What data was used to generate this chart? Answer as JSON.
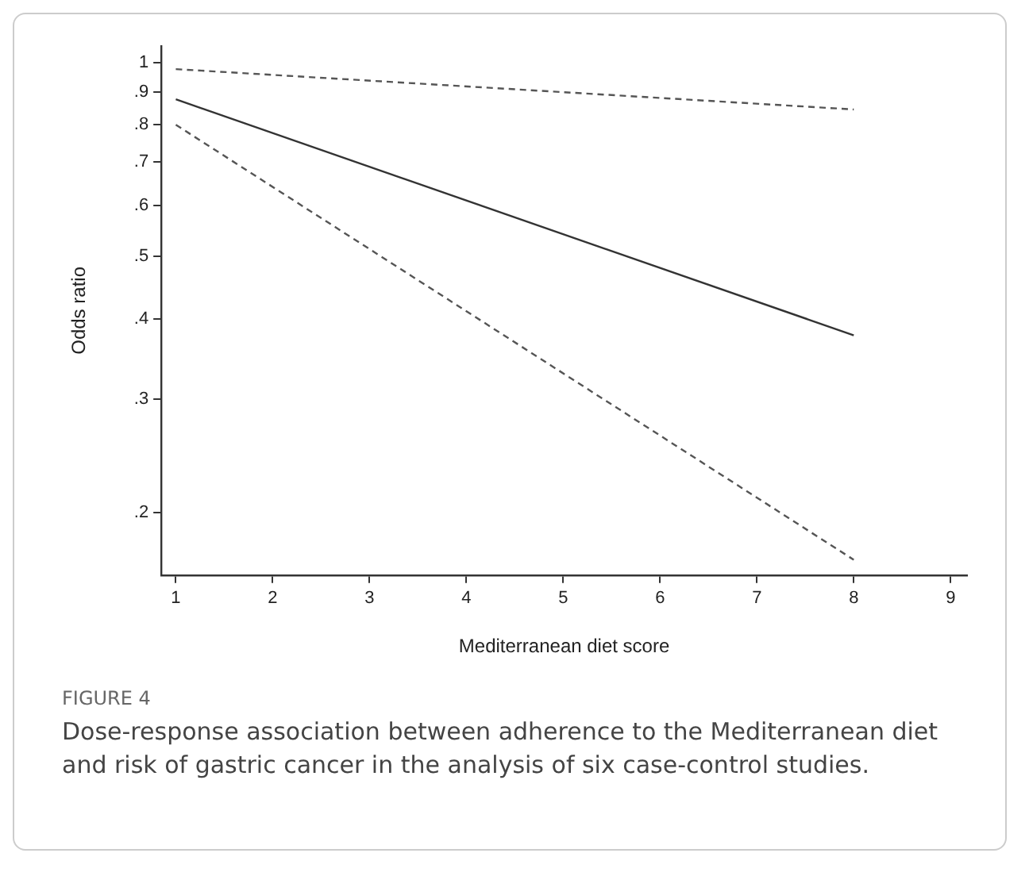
{
  "chart_data": {
    "type": "line",
    "xlabel": "Mediterranean diet score",
    "ylabel": "Odds ratio",
    "log": "y",
    "grid": false,
    "legend": false,
    "marker": "none",
    "xlim": [
      0.85,
      9.17
    ],
    "xticks": [
      1,
      2,
      3,
      4,
      5,
      6,
      7,
      8,
      9
    ],
    "ylim": [
      0.16,
      1.06
    ],
    "yticks": [
      {
        "value": 0.2,
        "label": ".2"
      },
      {
        "value": 0.3,
        "label": ".3"
      },
      {
        "value": 0.4,
        "label": ".4"
      },
      {
        "value": 0.5,
        "label": ".5"
      },
      {
        "value": 0.6,
        "label": ".6"
      },
      {
        "value": 0.7,
        "label": ".7"
      },
      {
        "value": 0.8,
        "label": ".8"
      },
      {
        "value": 0.9,
        "label": ".9"
      },
      1
    ],
    "x": [
      1,
      8
    ],
    "series": [
      {
        "color": "#555555",
        "line_style": "dashed",
        "values": [
          0.976,
          0.845
        ]
      },
      {
        "color": "#333333",
        "line_style": "solid",
        "values": [
          0.876,
          0.377
        ]
      },
      {
        "color": "#555555",
        "line_style": "dashed",
        "values": [
          0.8,
          0.169
        ]
      }
    ],
    "annotations": [
      "FIGURE 4",
      "Dose-response association between adherence to the Mediterranean diet and risk of gastric cancer in the analysis of six case-control studies."
    ]
  }
}
